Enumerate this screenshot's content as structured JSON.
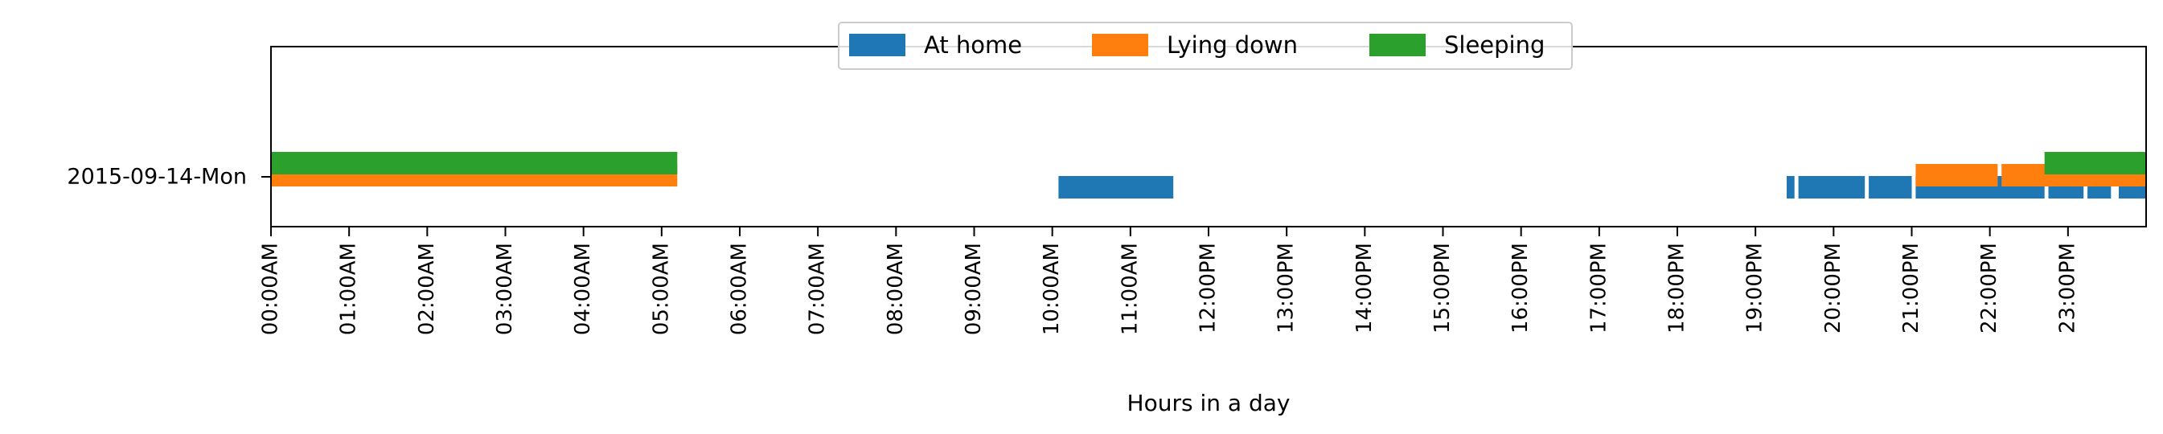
{
  "chart_data": {
    "type": "timeline",
    "title": "",
    "xlabel": "Hours in a day",
    "ylabel": "",
    "xlim": [
      0,
      24
    ],
    "x_unit": "hours",
    "category": "2015-09-14-Mon",
    "x_ticks": [
      {
        "hour": 0,
        "label": "00:00AM"
      },
      {
        "hour": 1,
        "label": "01:00AM"
      },
      {
        "hour": 2,
        "label": "02:00AM"
      },
      {
        "hour": 3,
        "label": "03:00AM"
      },
      {
        "hour": 4,
        "label": "04:00AM"
      },
      {
        "hour": 5,
        "label": "05:00AM"
      },
      {
        "hour": 6,
        "label": "06:00AM"
      },
      {
        "hour": 7,
        "label": "07:00AM"
      },
      {
        "hour": 8,
        "label": "08:00AM"
      },
      {
        "hour": 9,
        "label": "09:00AM"
      },
      {
        "hour": 10,
        "label": "10:00AM"
      },
      {
        "hour": 11,
        "label": "11:00AM"
      },
      {
        "hour": 12,
        "label": "12:00PM"
      },
      {
        "hour": 13,
        "label": "13:00PM"
      },
      {
        "hour": 14,
        "label": "14:00PM"
      },
      {
        "hour": 15,
        "label": "15:00PM"
      },
      {
        "hour": 16,
        "label": "16:00PM"
      },
      {
        "hour": 17,
        "label": "17:00PM"
      },
      {
        "hour": 18,
        "label": "18:00PM"
      },
      {
        "hour": 19,
        "label": "19:00PM"
      },
      {
        "hour": 20,
        "label": "20:00PM"
      },
      {
        "hour": 21,
        "label": "21:00PM"
      },
      {
        "hour": 22,
        "label": "22:00PM"
      },
      {
        "hour": 23,
        "label": "23:00PM"
      }
    ],
    "legend_position": "top-center",
    "grid": false,
    "series": [
      {
        "name": "At home",
        "color": "#1f77b4",
        "intervals": [
          [
            10.08,
            11.55
          ],
          [
            19.4,
            19.5
          ],
          [
            19.55,
            20.4
          ],
          [
            20.45,
            21.0
          ],
          [
            21.05,
            22.7
          ],
          [
            22.75,
            23.2
          ],
          [
            23.25,
            23.55
          ],
          [
            23.65,
            24.0
          ]
        ]
      },
      {
        "name": "Lying down",
        "color": "#ff7f0e",
        "intervals": [
          [
            0.0,
            5.2
          ],
          [
            21.05,
            22.1
          ],
          [
            22.15,
            24.0
          ]
        ]
      },
      {
        "name": "Sleeping",
        "color": "#2ca02c",
        "intervals": [
          [
            0.0,
            5.2
          ],
          [
            22.7,
            24.0
          ]
        ]
      }
    ]
  }
}
